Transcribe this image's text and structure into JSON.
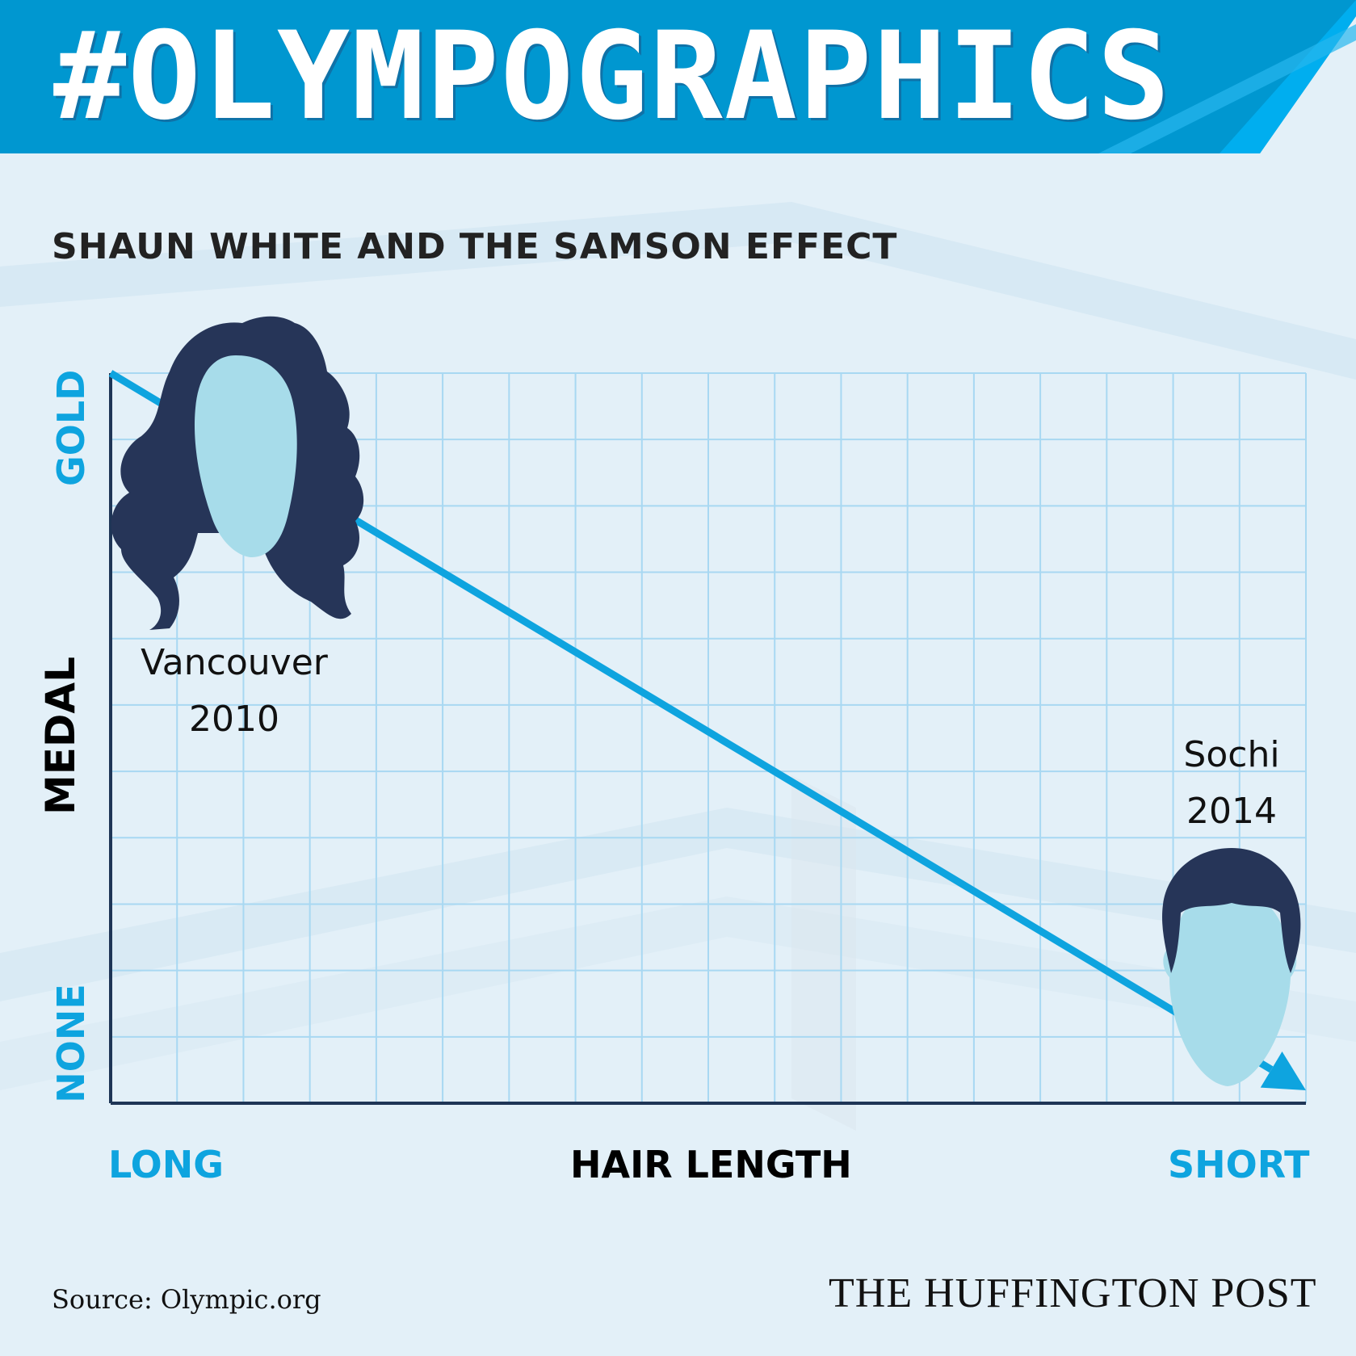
{
  "banner": {
    "title": "#OLYMPOGRAPHICS"
  },
  "colors": {
    "banner_dark": "#0097d0",
    "banner_light": "#00aeef",
    "accent": "#0ea4df",
    "grid": "#a8d8f2",
    "axis": "#1e3556",
    "hair": "#263558",
    "face": "#a7dcea",
    "background": "#e3f0f8"
  },
  "icons": [
    "long-hair-head-icon",
    "short-hair-head-icon",
    "trend-arrow-icon"
  ],
  "chart_data": {
    "type": "line",
    "title": "SHAUN WHITE AND THE SAMSON EFFECT",
    "xlabel": "HAIR LENGTH",
    "ylabel": "MEDAL",
    "x_ends": {
      "start": "LONG",
      "end": "SHORT"
    },
    "y_ends": {
      "top": "GOLD",
      "bottom": "NONE"
    },
    "grid": true,
    "series": [
      {
        "points": [
          {
            "x": 0,
            "y": 1
          },
          {
            "x": 1,
            "y": 0
          }
        ]
      }
    ],
    "annotations": [
      {
        "line1": "Vancouver",
        "line2": "2010",
        "icon": "long-hair-head-icon"
      },
      {
        "line1": "Sochi",
        "line2": "2014",
        "icon": "short-hair-head-icon"
      }
    ]
  },
  "footer": {
    "source": "Source: Olympic.org",
    "brand": "THE HUFFINGTON POST"
  }
}
